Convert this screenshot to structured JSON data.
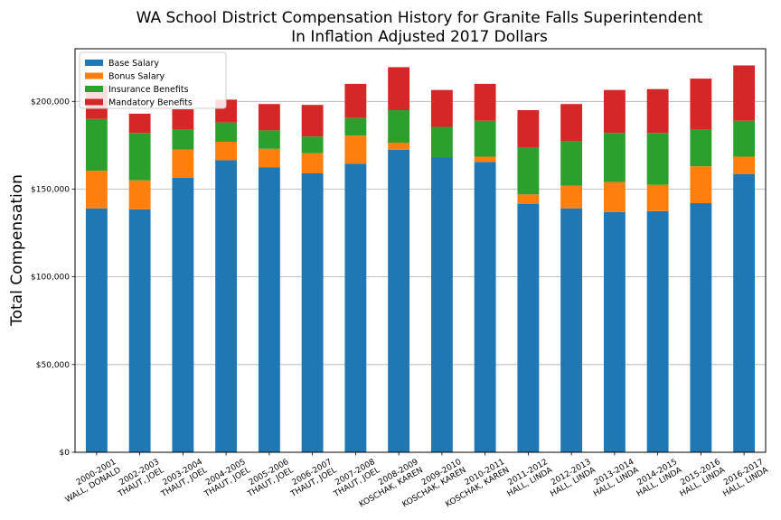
{
  "chart_data": {
    "type": "bar",
    "stacked": true,
    "title": "WA School District Compensation History for Granite Falls Superintendent",
    "subtitle": "In Inflation Adjusted 2017 Dollars",
    "xlabel": "",
    "ylabel": "Total Compensation",
    "ylim": [
      0,
      230000
    ],
    "yticks": [
      0,
      50000,
      100000,
      150000,
      200000
    ],
    "ytick_labels": [
      "$0",
      "$50,000",
      "$100,000",
      "$150,000",
      "$200,000"
    ],
    "grid": "horizontal",
    "legend_position": "top-left",
    "categories": [
      [
        "2000-2001",
        "WALL, DONALD"
      ],
      [
        "2002-2003",
        "THAUT, JOEL"
      ],
      [
        "2003-2004",
        "THAUT, JOEL"
      ],
      [
        "2004-2005",
        "THAUT, JOEL"
      ],
      [
        "2005-2006",
        "THAUT, JOEL"
      ],
      [
        "2006-2007",
        "THAUT, JOEL"
      ],
      [
        "2007-2008",
        "THAUT, JOEL"
      ],
      [
        "2008-2009",
        "KOSCHAK, KAREN"
      ],
      [
        "2009-2010",
        "KOSCHAK, KAREN"
      ],
      [
        "2010-2011",
        "KOSCHAK, KAREN"
      ],
      [
        "2011-2012",
        "HALL, LINDA"
      ],
      [
        "2012-2013",
        "HALL, LINDA"
      ],
      [
        "2013-2014",
        "HALL, LINDA"
      ],
      [
        "2014-2015",
        "HALL, LINDA"
      ],
      [
        "2015-2016",
        "HALL, LINDA"
      ],
      [
        "2016-2017",
        "HALL, LINDA"
      ]
    ],
    "series": [
      {
        "name": "Base Salary",
        "color": "#1f77b4",
        "values": [
          139000,
          138500,
          156500,
          166500,
          162500,
          159000,
          164500,
          172500,
          168000,
          165500,
          141500,
          139000,
          137000,
          137500,
          142000,
          158500
        ]
      },
      {
        "name": "Bonus Salary",
        "color": "#ff7f0e",
        "values": [
          21500,
          16500,
          16000,
          10500,
          10500,
          11500,
          16000,
          4000,
          0,
          3000,
          5500,
          13000,
          17000,
          15000,
          21000,
          10000
        ]
      },
      {
        "name": "Insurance Benefits",
        "color": "#2ca02c",
        "values": [
          29500,
          27000,
          11500,
          11000,
          10500,
          9500,
          10000,
          18500,
          17500,
          20500,
          26500,
          25500,
          28000,
          29500,
          21000,
          20500
        ]
      },
      {
        "name": "Mandatory Benefits",
        "color": "#d62728",
        "values": [
          19000,
          11000,
          11500,
          13000,
          15000,
          18000,
          19500,
          24500,
          21000,
          21000,
          21500,
          21000,
          24500,
          25000,
          29000,
          31500
        ]
      }
    ]
  }
}
